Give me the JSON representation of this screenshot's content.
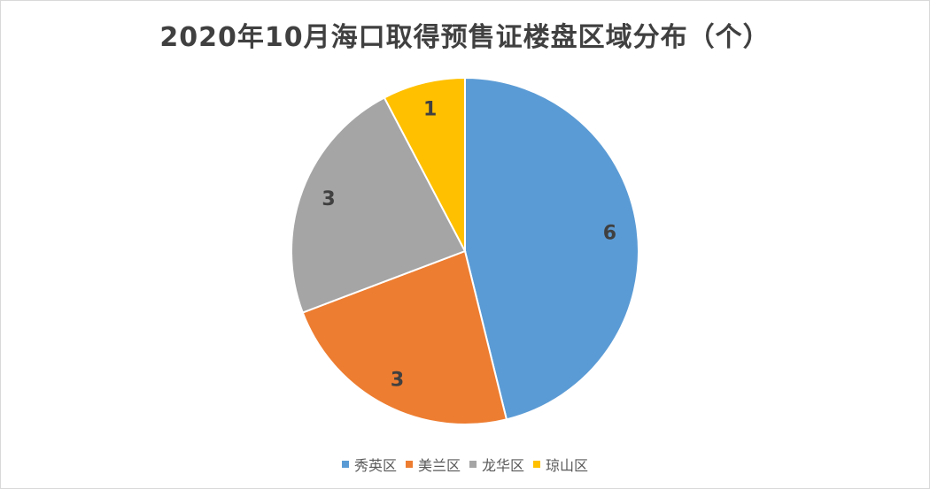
{
  "chart_data": {
    "type": "pie",
    "title": "2020年10月海口取得预售证楼盘区域分布（个）",
    "categories": [
      "秀英区",
      "美兰区",
      "龙华区",
      "琼山区"
    ],
    "values": [
      6,
      3,
      3,
      1
    ],
    "colors": [
      "#5b9bd5",
      "#ed7d31",
      "#a5a5a5",
      "#ffc000"
    ],
    "data_labels": [
      "6",
      "3",
      "3",
      "1"
    ],
    "legend_position": "bottom",
    "start_angle": "12 o'clock",
    "direction": "clockwise"
  }
}
